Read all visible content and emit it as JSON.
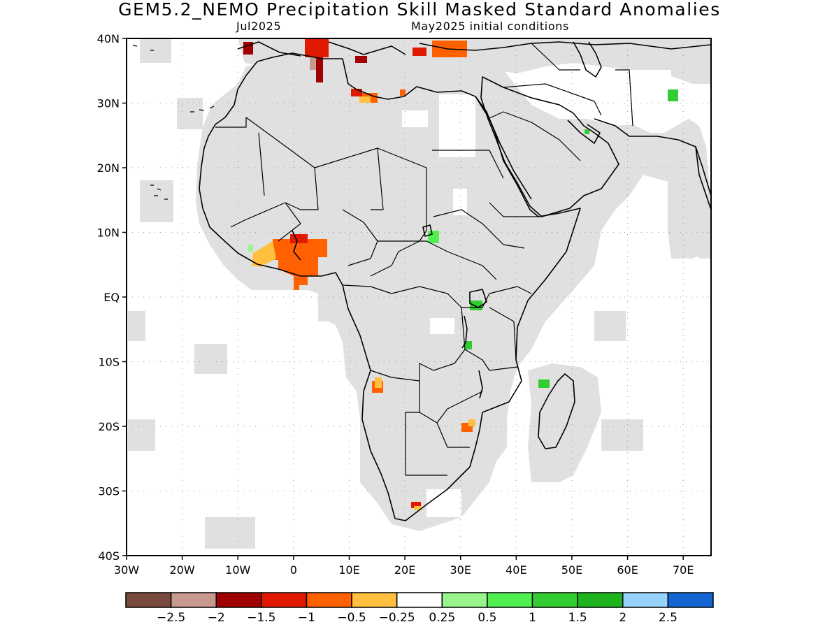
{
  "title": "GEM5.2_NEMO Precipitation Skill Masked Standard Anomalies",
  "subtitle_left": "Jul2025",
  "subtitle_right": "May2025 initial conditions",
  "map": {
    "lon_range": [
      -30,
      75
    ],
    "lat_range": [
      -40,
      40
    ],
    "x_ticks": [
      {
        "value": -30,
        "label": "30W"
      },
      {
        "value": -20,
        "label": "20W"
      },
      {
        "value": -10,
        "label": "10W"
      },
      {
        "value": 0,
        "label": "0"
      },
      {
        "value": 10,
        "label": "10E"
      },
      {
        "value": 20,
        "label": "20E"
      },
      {
        "value": 30,
        "label": "30E"
      },
      {
        "value": 40,
        "label": "40E"
      },
      {
        "value": 50,
        "label": "50E"
      },
      {
        "value": 60,
        "label": "60E"
      },
      {
        "value": 70,
        "label": "70E"
      }
    ],
    "y_ticks": [
      {
        "value": 40,
        "label": "40N"
      },
      {
        "value": 30,
        "label": "30N"
      },
      {
        "value": 20,
        "label": "20N"
      },
      {
        "value": 10,
        "label": "10N"
      },
      {
        "value": 0,
        "label": "EQ"
      },
      {
        "value": -10,
        "label": "10S"
      },
      {
        "value": -20,
        "label": "20S"
      },
      {
        "value": -30,
        "label": "30S"
      },
      {
        "value": -40,
        "label": "40S"
      }
    ],
    "grid": true,
    "mask_color": "#e0e0e0",
    "coast_color": "#000000"
  },
  "colorbar": {
    "colors": [
      "#7a4a3f",
      "#c8998f",
      "#a00000",
      "#e01a00",
      "#ff6000",
      "#ffc040",
      "#ffffff",
      "#98f58c",
      "#50f050",
      "#32cd32",
      "#1eb41e",
      "#96d2fa",
      "#1464d2"
    ],
    "labels": [
      "−2.5",
      "−2",
      "−1.5",
      "−1",
      "−0.5",
      "−0.25",
      "0.25",
      "0.5",
      "1",
      "1.5",
      "2",
      "2.5"
    ]
  },
  "anomalies": [
    {
      "lon": -3,
      "lat": 5,
      "level": "−1"
    },
    {
      "lon": -5,
      "lat": 7,
      "level": "−0.5"
    },
    {
      "lon": 4,
      "lat": 38,
      "level": "−1.5"
    },
    {
      "lon": 29,
      "lat": 38.5,
      "level": "−1"
    },
    {
      "lon": 15,
      "lat": -14,
      "level": "−0.5"
    },
    {
      "lon": 68,
      "lat": 31,
      "level": "1"
    },
    {
      "lon": 32,
      "lat": -1.5,
      "level": "1"
    },
    {
      "lon": 45,
      "lat": -13,
      "level": "1"
    },
    {
      "lon": 22,
      "lat": -32,
      "level": "−1"
    }
  ]
}
